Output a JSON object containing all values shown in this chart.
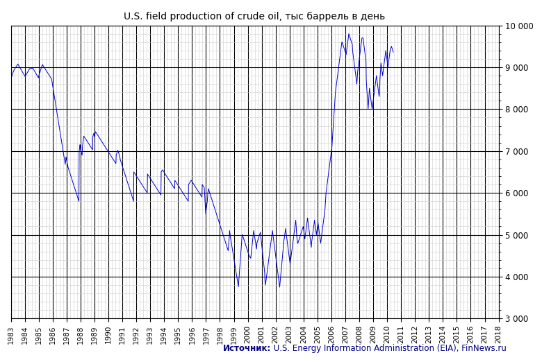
{
  "title": "U.S. field production of crude oil, тыс баррель в день",
  "source_bold": "Источник:",
  "source_normal": " U.S. Energy Information Administration (EIA), FinNews.ru",
  "xmin": 1983,
  "xmax": 2018,
  "ymin": 3000,
  "ymax": 10000,
  "yticks": [
    3000,
    4000,
    5000,
    6000,
    7000,
    8000,
    9000,
    10000
  ],
  "line_color": "#0000CC",
  "background_color": "#ffffff",
  "grid_major_color": "#000000",
  "grid_minor_color": "#cccccc",
  "title_fontsize": 10,
  "weekly_data": [
    8721,
    8743,
    8756,
    8778,
    8791,
    8812,
    8834,
    8856,
    8867,
    8889,
    8901,
    8923,
    8934,
    8945,
    8956,
    8967,
    8978,
    8989,
    8998,
    9001,
    9012,
    9023,
    9034,
    9045,
    9056,
    9067,
    9078,
    9067,
    9056,
    9045,
    9034,
    9023,
    9012,
    9001,
    8990,
    8979,
    8968,
    8957,
    8946,
    8935,
    8924,
    8913,
    8902,
    8891,
    8880,
    8869,
    8858,
    8847,
    8836,
    8825,
    8814,
    8803,
    8792,
    8781,
    8790,
    8801,
    8812,
    8823,
    8834,
    8845,
    8856,
    8867,
    8878,
    8889,
    8900,
    8911,
    8922,
    8933,
    8944,
    8955,
    8966,
    8967,
    8968,
    8969,
    8970,
    8971,
    8972,
    8973,
    8974,
    8975,
    8976,
    8977,
    8978,
    8967,
    8956,
    8945,
    8934,
    8923,
    8912,
    8901,
    8890,
    8879,
    8868,
    8857,
    8846,
    8835,
    8824,
    8813,
    8802,
    8791,
    8780,
    8769,
    8758,
    8747,
    8790,
    8810,
    8830,
    8850,
    8870,
    8890,
    8910,
    8930,
    8950,
    8970,
    8990,
    9010,
    9030,
    9050,
    9060,
    9050,
    9040,
    9030,
    9020,
    9010,
    9000,
    8990,
    8980,
    8970,
    8960,
    8950,
    8940,
    8930,
    8920,
    8910,
    8900,
    8890,
    8880,
    8870,
    8860,
    8850,
    8840,
    8830,
    8820,
    8810,
    8800,
    8790,
    8780,
    8770,
    8760,
    8750,
    8740,
    8730,
    8720,
    8680,
    8640,
    8600,
    8560,
    8520,
    8480,
    8440,
    8400,
    8360,
    8320,
    8280,
    8240,
    8200,
    8160,
    8120,
    8080,
    8040,
    8000,
    7960,
    7920,
    7880,
    7840,
    7800,
    7760,
    7720,
    7680,
    7640,
    7600,
    7560,
    7520,
    7480,
    7440,
    7400,
    7360,
    7320,
    7280,
    7240,
    7200,
    7160,
    7120,
    7080,
    7040,
    7000,
    6960,
    6920,
    6880,
    6840,
    6800,
    6760,
    6720,
    6680,
    6740,
    6790,
    6850,
    6820,
    6780,
    6750,
    6720,
    6690,
    6660,
    6630,
    6600,
    6580,
    6560,
    6540,
    6520,
    6500,
    6480,
    6460,
    6440,
    6420,
    6400,
    6380,
    6360,
    6340,
    6320,
    6300,
    6280,
    6260,
    6240,
    6220,
    6200,
    6180,
    6160,
    6140,
    6120,
    6100,
    6080,
    6060,
    6040,
    6020,
    6000,
    5980,
    5960,
    5940,
    5920,
    5900,
    5880,
    5860,
    5840,
    5820,
    5800,
    7000,
    7050,
    7100,
    7150,
    7080,
    7040,
    7000,
    6980,
    6960,
    6940,
    6920,
    6900,
    7100,
    7150,
    7200,
    7250,
    7300,
    7350,
    7350,
    7340,
    7330,
    7320,
    7310,
    7300,
    7290,
    7280,
    7270,
    7260,
    7250,
    7240,
    7230,
    7220,
    7210,
    7200,
    7190,
    7180,
    7170,
    7160,
    7150,
    7140,
    7130,
    7120,
    7110,
    7100,
    7090,
    7080,
    7070,
    7060,
    7050,
    7040,
    7030,
    7350,
    7370,
    7390,
    7410,
    7430,
    7380,
    7350,
    7380,
    7410,
    7440,
    7460,
    7450,
    7440,
    7430,
    7420,
    7410,
    7400,
    7390,
    7380,
    7370,
    7360,
    7350,
    7340,
    7330,
    7320,
    7310,
    7300,
    7290,
    7280,
    7270,
    7260,
    7250,
    7240,
    7230,
    7220,
    7210,
    7200,
    7190,
    7180,
    7170,
    7160,
    7150,
    7140,
    7130,
    7120,
    7110,
    7100,
    7090,
    7080,
    7070,
    7060,
    7050,
    7040,
    7030,
    7020,
    7010,
    7000,
    6990,
    6980,
    6970,
    6960,
    6950,
    6940,
    6930,
    6920,
    6910,
    6900,
    6890,
    6880,
    6870,
    6860,
    6850,
    6840,
    6830,
    6820,
    6810,
    6800,
    6790,
    6780,
    6770,
    6760,
    6750,
    6740,
    6730,
    6720,
    6710,
    6700,
    6900,
    6920,
    6940,
    6960,
    6980,
    7000,
    7020,
    7000,
    6980,
    6960,
    6940,
    6920,
    6900,
    6880,
    6860,
    6800,
    6780,
    6760,
    6740,
    6720,
    6700,
    6680,
    6660,
    6640,
    6620,
    6600,
    6580,
    6560,
    6540,
    6520,
    6500,
    6480,
    6460,
    6440,
    6420,
    6400,
    6380,
    6360,
    6340,
    6320,
    6300,
    6280,
    6260,
    6240,
    6220,
    6200,
    6180,
    6160,
    6140,
    6120,
    6100,
    6080,
    6060,
    6040,
    6020,
    6000,
    5980,
    5960,
    5940,
    5920,
    5900,
    5880,
    5860,
    5840,
    5820,
    5800,
    6500,
    6490,
    6480,
    6470,
    6460,
    6450,
    6440,
    6430,
    6420,
    6410,
    6400,
    6390,
    6380,
    6370,
    6360,
    6350,
    6340,
    6330,
    6320,
    6310,
    6300,
    6290,
    6280,
    6270,
    6260,
    6250,
    6240,
    6230,
    6220,
    6210,
    6200,
    6190,
    6180,
    6170,
    6160,
    6150,
    6140,
    6130,
    6120,
    6110,
    6100,
    6090,
    6080,
    6070,
    6060,
    6050,
    6040,
    6030,
    6020,
    6010,
    6000,
    6450,
    6440,
    6430,
    6420,
    6410,
    6400,
    6390,
    6380,
    6370,
    6360,
    6350,
    6340,
    6330,
    6320,
    6310,
    6300,
    6290,
    6280,
    6270,
    6260,
    6250,
    6240,
    6230,
    6220,
    6210,
    6200,
    6190,
    6180,
    6170,
    6160,
    6150,
    6140,
    6130,
    6120,
    6110,
    6100,
    6090,
    6080,
    6070,
    6060,
    6050,
    6040,
    6030,
    6020,
    6010,
    6000,
    5990,
    5980,
    5970,
    5960,
    5950,
    6500,
    6510,
    6520,
    6530,
    6540,
    6550,
    6540,
    6530,
    6520,
    6510,
    6500,
    6490,
    6480,
    6470,
    6460,
    6450,
    6440,
    6430,
    6420,
    6410,
    6400,
    6390,
    6380,
    6370,
    6360,
    6350,
    6340,
    6330,
    6320,
    6310,
    6300,
    6290,
    6280,
    6270,
    6260,
    6250,
    6240,
    6230,
    6220,
    6210,
    6200,
    6190,
    6180,
    6170,
    6160,
    6150,
    6140,
    6130,
    6120,
    6110,
    6100,
    6300,
    6290,
    6280,
    6270,
    6260,
    6250,
    6240,
    6230,
    6220,
    6210,
    6200,
    6190,
    6180,
    6170,
    6160,
    6150,
    6140,
    6130,
    6120,
    6110,
    6100,
    6090,
    6080,
    6070,
    6060,
    6050,
    6040,
    6030,
    6020,
    6010,
    6000,
    5990,
    5980,
    5970,
    5960,
    5950,
    5940,
    5930,
    5920,
    5910,
    5900,
    5890,
    5880,
    5870,
    5860,
    5850,
    5840,
    5830,
    5820,
    5810,
    5800,
    6200,
    6210,
    6220,
    6230,
    6240,
    6250,
    6260,
    6270,
    6280,
    6290,
    6300,
    6290,
    6280,
    6270,
    6260,
    6250,
    6240,
    6230,
    6220,
    6210,
    6200,
    6190,
    6180,
    6170,
    6160,
    6150,
    6140,
    6130,
    6120,
    6110,
    6100,
    6090,
    6080,
    6070,
    6060,
    6050,
    6040,
    6030,
    6020,
    6010,
    6000,
    5990,
    5980,
    5970,
    5960,
    5950,
    5940,
    5930,
    5920,
    5910,
    5900,
    6200,
    6190,
    6180,
    6170,
    6160,
    6150,
    6140,
    6130,
    6100,
    5980,
    5860,
    5740,
    5620,
    5500,
    5550,
    5600,
    5650,
    5700,
    5750,
    5800,
    5900,
    6000,
    6050,
    6100,
    6080,
    6060,
    6040,
    6020,
    6000,
    5980,
    5960,
    5940,
    5920,
    5900,
    5880,
    5860,
    5840,
    5820,
    5800,
    5780,
    5760,
    5740,
    5720,
    5700,
    5680,
    5660,
    5640,
    5620,
    5600,
    5580,
    5560,
    5540,
    5520,
    5500,
    5480,
    5460,
    5440,
    5420,
    5400,
    5380,
    5360,
    5340,
    5320,
    5300,
    5280,
    5260,
    5240,
    5220,
    5200,
    5180,
    5160,
    5140,
    5120,
    5100,
    5080,
    5060,
    5040,
    5020,
    5000,
    4980,
    4960,
    4940,
    4920,
    4900,
    4880,
    4860,
    4840,
    4820,
    4800,
    4780,
    4760,
    4740,
    4720,
    4700,
    4680,
    4660,
    4640,
    4620,
    4700,
    4780,
    4860,
    4940,
    5100,
    5050,
    5000,
    4960,
    4920,
    4880,
    4840,
    4800,
    4760,
    4720,
    4680,
    4640,
    4600,
    4560,
    4520,
    4480,
    4440,
    4400,
    4360,
    4320,
    4280,
    4240,
    4200,
    4160,
    4120,
    4080,
    4040,
    4000,
    3960,
    3920,
    3880,
    3840,
    3800,
    3760,
    3850,
    3940,
    4030,
    4120,
    4210,
    4300,
    4390,
    4480,
    4570,
    4660,
    4750,
    4840,
    4930,
    5000,
    5000,
    4980,
    4960,
    4940,
    4920,
    4900,
    4880,
    4860,
    4840,
    4820,
    4800,
    4780,
    4760,
    4740,
    4720,
    4700,
    4680,
    4660,
    4640,
    4620,
    4600,
    4580,
    4560,
    4540,
    4520,
    4500,
    4490,
    4480,
    4470,
    4460,
    4450,
    4440,
    4500,
    4560,
    4620,
    4680,
    4740,
    4800,
    4860,
    4920,
    4980,
    5040,
    5100,
    5060,
    5020,
    4980,
    4940,
    4900,
    4860,
    4820,
    4780,
    4740,
    4700,
    4660,
    4800,
    4820,
    4840,
    4860,
    4880,
    4900,
    4920,
    4940,
    4960,
    4980,
    5000,
    5020,
    5040,
    5060,
    5000,
    4940,
    4880,
    4820,
    4760,
    4700,
    4640,
    4580,
    4520,
    4460,
    4400,
    4340,
    4280,
    4220,
    4160,
    4100,
    3900,
    3850,
    3800,
    3850,
    3900,
    3950,
    4000,
    4050,
    4100,
    4150,
    4200,
    4250,
    4300,
    4350,
    4400,
    4450,
    4500,
    4550,
    4600,
    4650,
    4700,
    4750,
    4800,
    4850,
    4900,
    4950,
    5000,
    5050,
    5100,
    5050,
    5000,
    4950,
    4900,
    4850,
    4800,
    4750,
    4700,
    4650,
    4600,
    4550,
    4500,
    4450,
    4400,
    4350,
    4300,
    4250,
    4200,
    4150,
    4100,
    4050,
    4000,
    3950,
    3900,
    3850,
    3800,
    3750,
    3820,
    3890,
    3960,
    4030,
    4100,
    4170,
    4240,
    4310,
    4380,
    4450,
    4520,
    4590,
    4660,
    4730,
    4800,
    4870,
    4900,
    4950,
    5000,
    5050,
    5100,
    5150,
    5100,
    5050,
    5000,
    4950,
    4900,
    4850,
    4800,
    4750,
    4700,
    4650,
    4600,
    4550,
    4500,
    4450,
    4400,
    4350,
    4300,
    4350,
    4400,
    4450,
    4500,
    4550,
    4600,
    4650,
    4700,
    4750,
    4800,
    4850,
    4900,
    4950,
    5000,
    5050,
    5100,
    5150,
    5200,
    5250,
    5300,
    5350,
    5250,
    5150,
    5050,
    4950,
    4900,
    4850,
    4800,
    4800,
    4820,
    4840,
    4860,
    4880,
    4900,
    4920,
    4940,
    4960,
    4980,
    5000,
    5020,
    5040,
    5060,
    5080,
    5100,
    5120,
    5140,
    5160,
    5180,
    5200,
    5150,
    5100,
    5050,
    5000,
    4950,
    4900,
    4950,
    5000,
    5050,
    5100,
    5150,
    5200,
    5250,
    5300,
    5350,
    5400,
    5350,
    5300,
    5250,
    5200,
    5150,
    5100,
    5050,
    5000,
    4950,
    4900,
    4850,
    4800,
    4750,
    4700,
    4800,
    4850,
    4900,
    4950,
    5000,
    5050,
    5100,
    5150,
    5200,
    5250,
    5300,
    5350,
    5300,
    5250,
    5200,
    5150,
    5100,
    5050,
    5000,
    5050,
    5100,
    5150,
    5200,
    5250,
    5300,
    5250,
    5200,
    5150,
    5100,
    5050,
    5000,
    4950,
    4900,
    4850,
    4800,
    4850,
    4900,
    4950,
    5000,
    5050,
    5100,
    5150,
    5200,
    5250,
    5300,
    5350,
    5400,
    5450,
    5500,
    5550,
    5600,
    5700,
    5800,
    5900,
    6000,
    6050,
    6100,
    6150,
    6200,
    6250,
    6300,
    6350,
    6400,
    6450,
    6500,
    6550,
    6600,
    6650,
    6700,
    6750,
    6800,
    6850,
    6900,
    6950,
    7000,
    7050,
    7100,
    7200,
    7300,
    7400,
    7500,
    7600,
    7700,
    7800,
    7900,
    8000,
    8100,
    8200,
    8300,
    8400,
    8450,
    8500,
    8550,
    8600,
    8650,
    8700,
    8750,
    8800,
    8850,
    8900,
    8950,
    9000,
    9050,
    9100,
    9150,
    9200,
    9250,
    9300,
    9350,
    9400,
    9450,
    9500,
    9550,
    9600,
    9600,
    9580,
    9560,
    9540,
    9520,
    9500,
    9480,
    9460,
    9440,
    9420,
    9400,
    9380,
    9360,
    9340,
    9320,
    9300,
    9350,
    9400,
    9450,
    9500,
    9550,
    9600,
    9650,
    9700,
    9750,
    9800,
    9780,
    9760,
    9740,
    9720,
    9700,
    9680,
    9660,
    9640,
    9620,
    9600,
    9580,
    9560,
    9540,
    9400,
    9350,
    9300,
    9250,
    9200,
    9150,
    9100,
    9050,
    9000,
    8950,
    8900,
    8850,
    8800,
    8750,
    8700,
    8650,
    8600,
    8700,
    8800,
    8900,
    8950,
    9000,
    9050,
    9100,
    9150,
    9200,
    9250,
    9300,
    9350,
    9400,
    9450,
    9500,
    9550,
    9600,
    9650,
    9700,
    9700,
    9700,
    9700,
    9700,
    9650,
    9600,
    9550,
    9500,
    9450,
    9400,
    9350,
    9300,
    9250,
    9200,
    9150,
    8700,
    8600,
    8500,
    8400,
    8300,
    8200,
    8100,
    8000,
    8100,
    8200,
    8300,
    8400,
    8500,
    8450,
    8400,
    8350,
    8300,
    8250,
    8200,
    8150,
    8100,
    8050,
    8000,
    8050,
    8100,
    8150,
    8200,
    8250,
    8300,
    8350,
    8400,
    8450,
    8500,
    8550,
    8600,
    8650,
    8700,
    8750,
    8800,
    8750,
    8700,
    8650,
    8600,
    8550,
    8500,
    8450,
    8400,
    8350,
    8300,
    8350,
    8400,
    8700,
    8800,
    8900,
    9000,
    9100,
    9050,
    9000,
    8950,
    8900,
    8850,
    8800,
    8850,
    8900,
    8950,
    9000,
    9050,
    9100,
    9150,
    9200,
    9250,
    9300,
    9350,
    9400,
    9350,
    9300,
    9250,
    9200,
    9150,
    9100,
    9050,
    9000,
    9050,
    9100,
    9150,
    9200,
    9250,
    9300,
    9350,
    9400,
    9420,
    9440,
    9460,
    9480,
    9500,
    9480,
    9460,
    9440,
    9420,
    9400,
    9380,
    9360
  ]
}
